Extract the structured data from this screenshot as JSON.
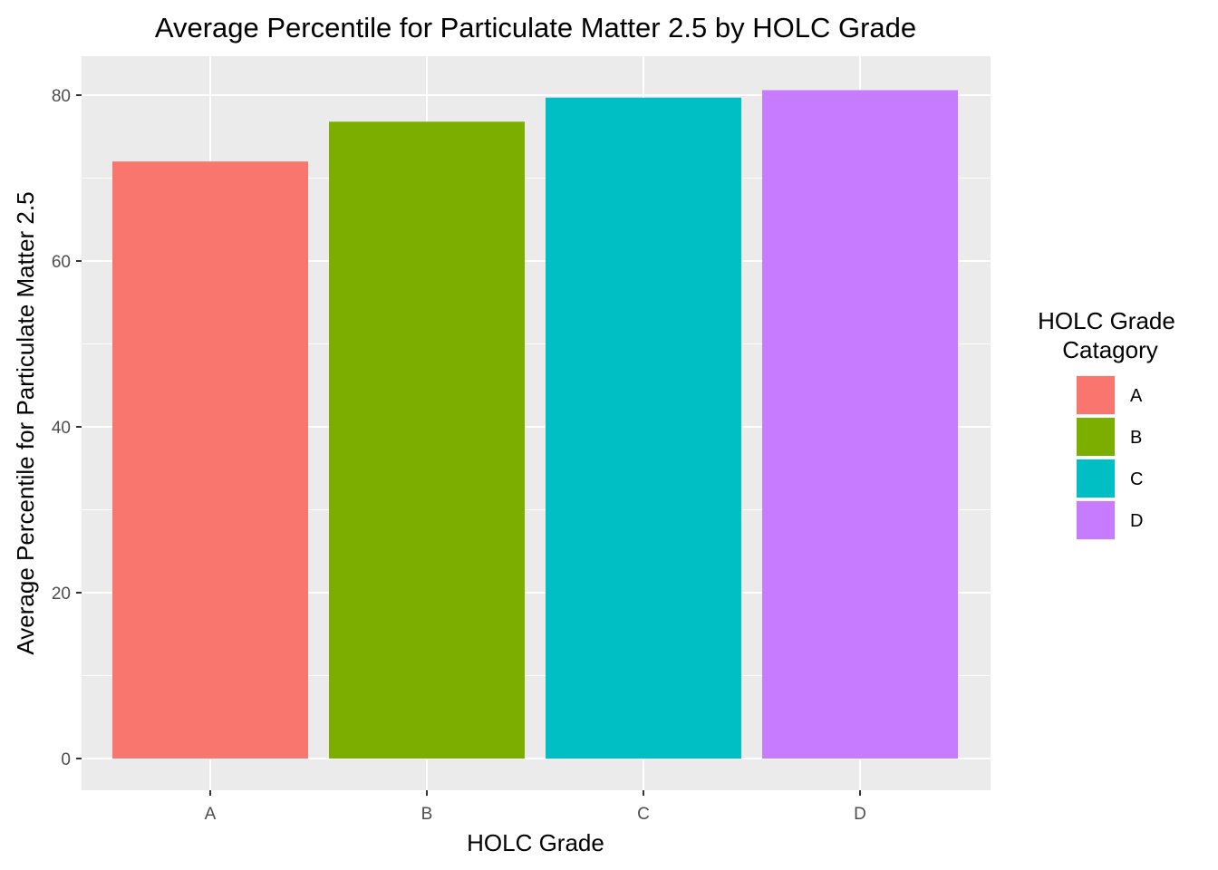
{
  "chart_data": {
    "type": "bar",
    "title": "Average Percentile for Particulate Matter 2.5 by HOLC Grade",
    "xlabel": "HOLC Grade",
    "ylabel": "Average Percentile for Particulate Matter 2.5",
    "categories": [
      "A",
      "B",
      "C",
      "D"
    ],
    "values": [
      72.0,
      76.8,
      79.7,
      80.6
    ],
    "colors": [
      "#F8766D",
      "#7CAE00",
      "#00BFC4",
      "#C77CFF"
    ],
    "ylim": [
      0,
      84.6
    ],
    "yticks": [
      0,
      20,
      40,
      60,
      80
    ],
    "grid": true,
    "legend": {
      "title_lines": [
        "HOLC Grade",
        "Catagory"
      ],
      "position": "right",
      "entries": [
        "A",
        "B",
        "C",
        "D"
      ]
    }
  }
}
